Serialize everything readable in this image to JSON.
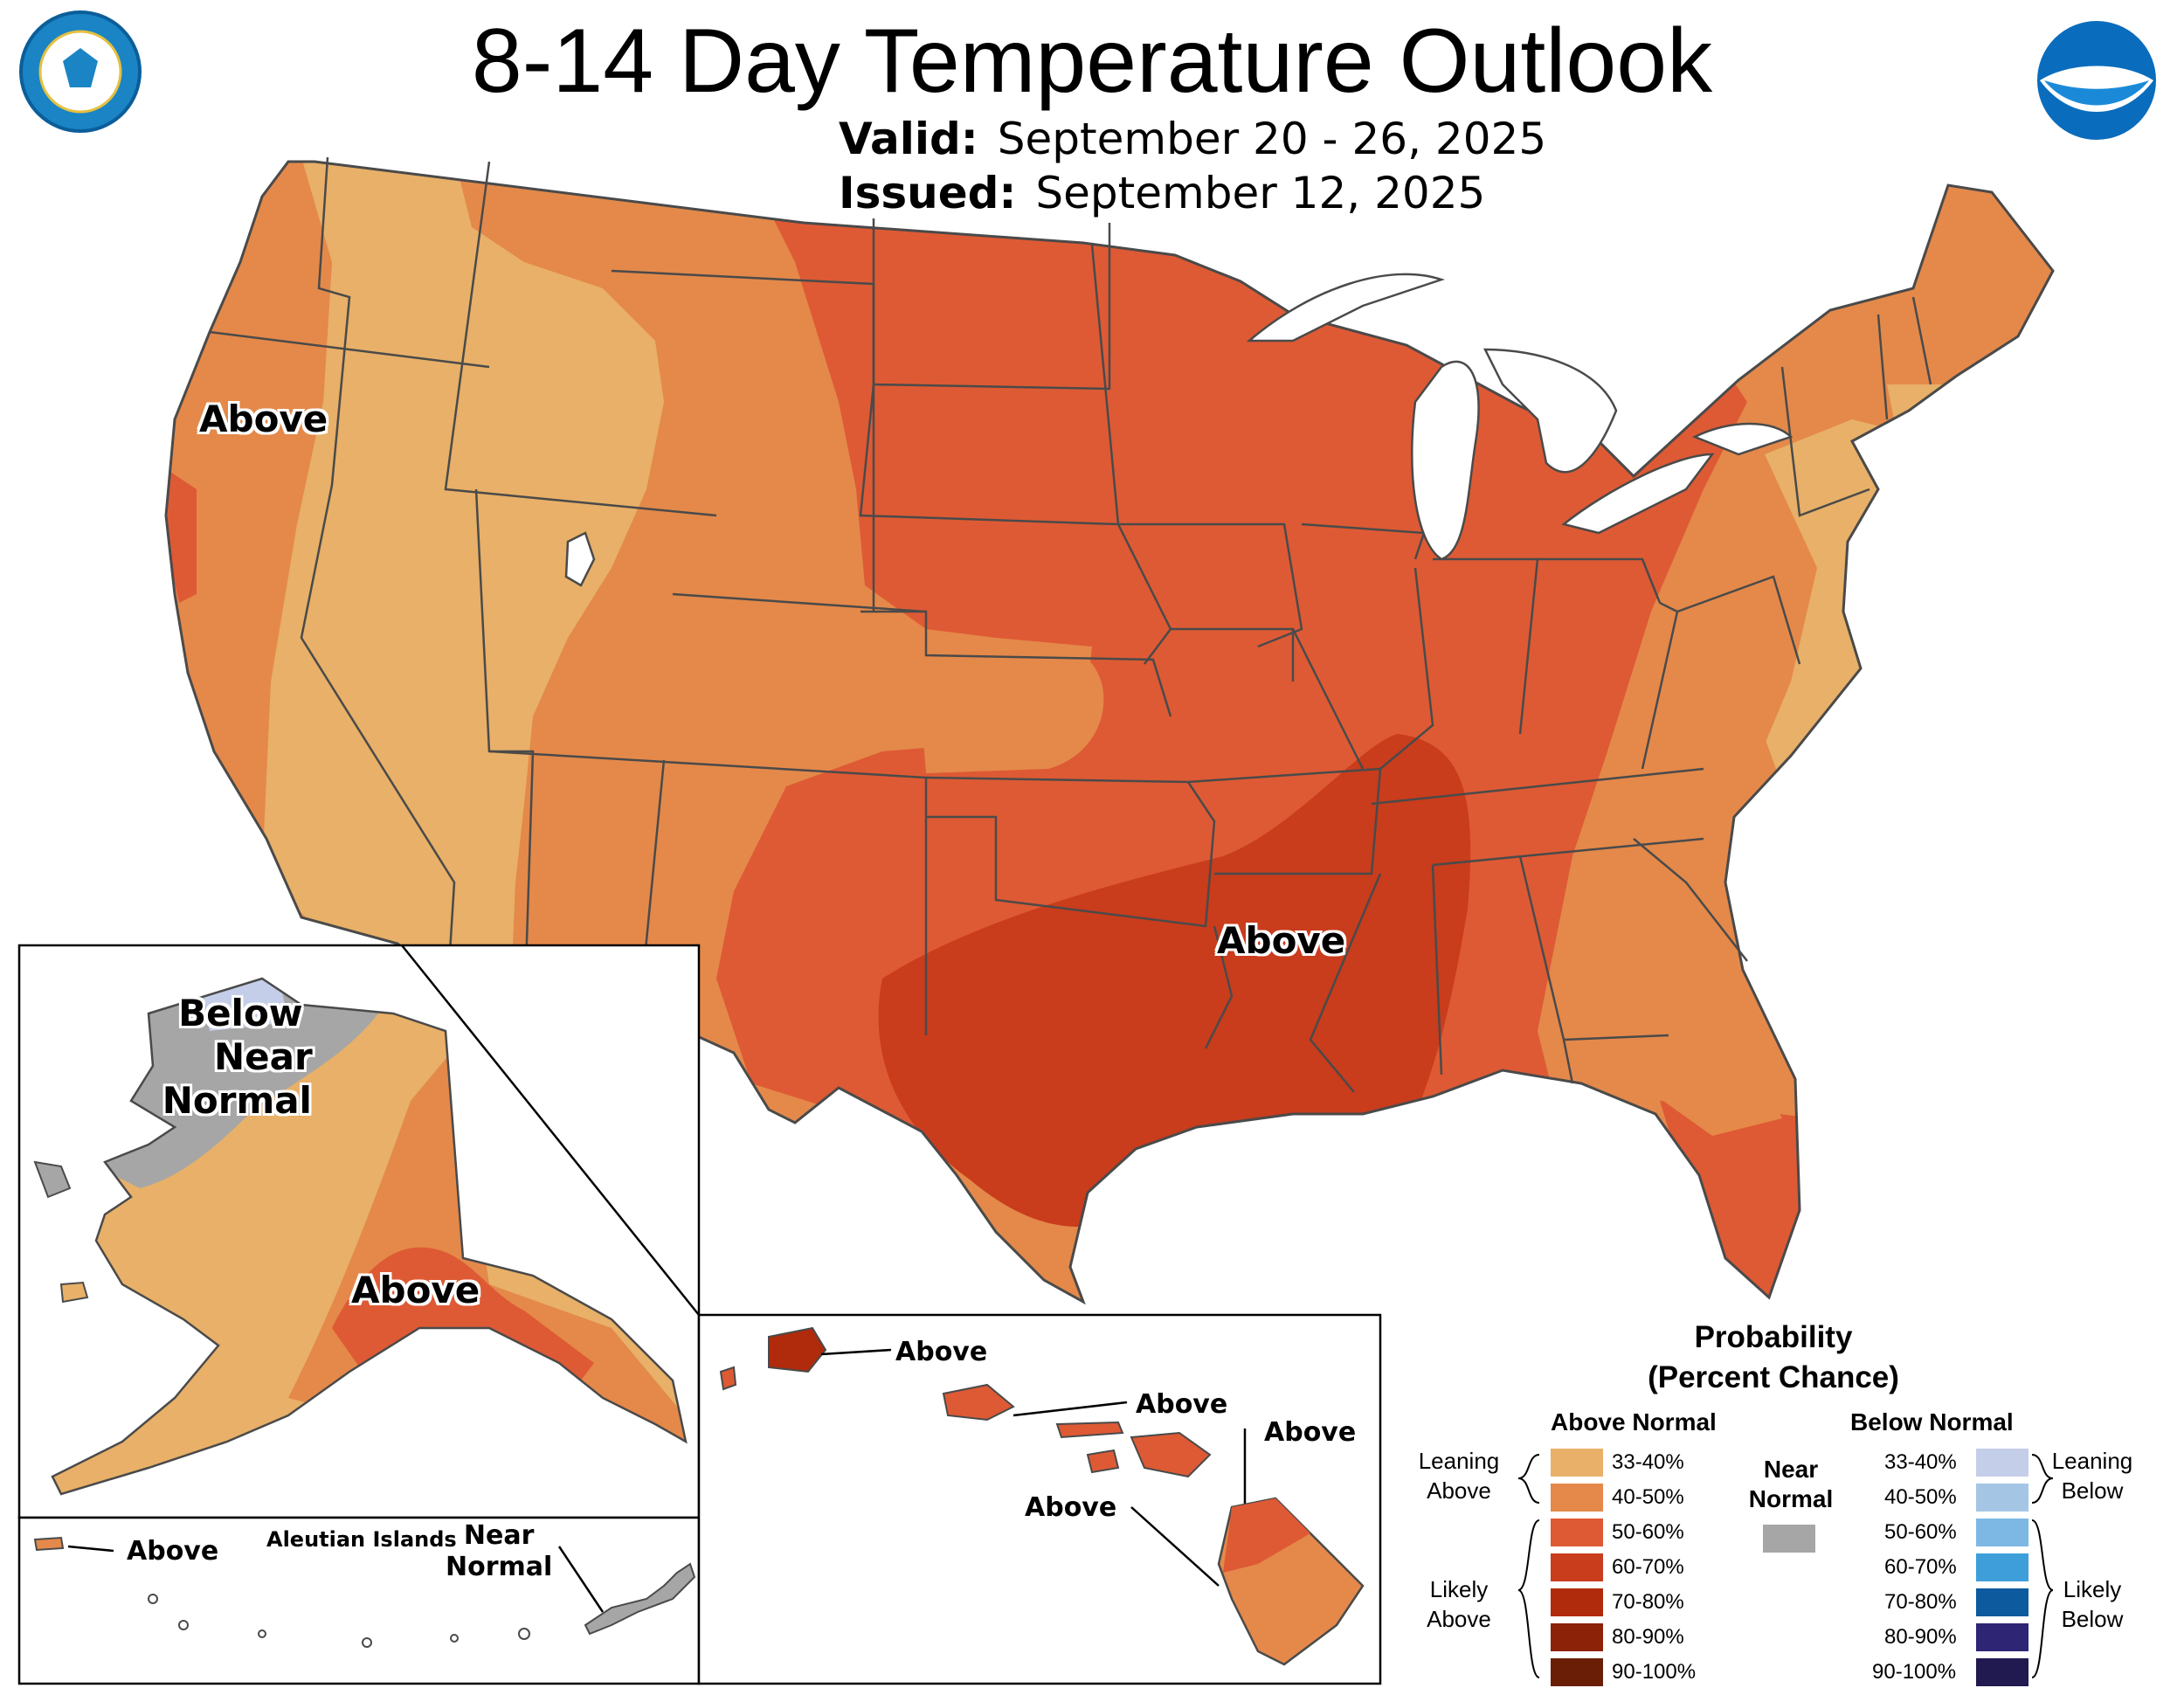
{
  "title": "8-14 Day Temperature Outlook",
  "valid_label": "Valid:",
  "valid_value": "September 20 - 26, 2025",
  "issued_label": "Issued:",
  "issued_value": "September 12, 2025",
  "logos": {
    "commerce_seal": "DEPARTMENT OF COMMERCE UNITED STATES OF AMERICA",
    "noaa": "NOAA"
  },
  "labels": {
    "conus_west": "Above",
    "conus_south": "Above",
    "alaska_above": "Above",
    "alaska_below": "Below",
    "alaska_near": "Near",
    "alaska_normal": "Normal",
    "aleutian_title": "Aleutian Islands",
    "aleutian_above": "Above",
    "aleutian_near": "Near",
    "aleutian_normal": "Normal",
    "hawaii_kauai": "Above",
    "hawaii_oahu": "Above",
    "hawaii_maui": "Above",
    "hawaii_big": "Above"
  },
  "legend": {
    "title_line1": "Probability",
    "title_line2": "(Percent Chance)",
    "above_header": "Above Normal",
    "below_header": "Below Normal",
    "near_line1": "Near",
    "near_line2": "Normal",
    "leaning_above_1": "Leaning",
    "leaning_above_2": "Above",
    "likely_above_1": "Likely",
    "likely_above_2": "Above",
    "leaning_below_1": "Leaning",
    "leaning_below_2": "Below",
    "likely_below_1": "Likely",
    "likely_below_2": "Below",
    "above": [
      {
        "range": "33-40%",
        "color": "#E8B068"
      },
      {
        "range": "40-50%",
        "color": "#E4894A"
      },
      {
        "range": "50-60%",
        "color": "#DE5A34"
      },
      {
        "range": "60-70%",
        "color": "#C93C1C"
      },
      {
        "range": "70-80%",
        "color": "#B02A0C"
      },
      {
        "range": "80-90%",
        "color": "#8C2208"
      },
      {
        "range": "90-100%",
        "color": "#6A1E05"
      }
    ],
    "below": [
      {
        "range": "33-40%",
        "color": "#C4CEE8"
      },
      {
        "range": "40-50%",
        "color": "#A4C6E4"
      },
      {
        "range": "50-60%",
        "color": "#7DB8E4"
      },
      {
        "range": "60-70%",
        "color": "#3E9EDA"
      },
      {
        "range": "70-80%",
        "color": "#0E5A9E"
      },
      {
        "range": "80-90%",
        "color": "#2E2674"
      },
      {
        "range": "90-100%",
        "color": "#201A50"
      }
    ],
    "near_color": "#A6A6A6"
  },
  "colors": {
    "lake": "#FFFFFF",
    "border": "#4A4A4A",
    "inset_frame": "#000000"
  }
}
